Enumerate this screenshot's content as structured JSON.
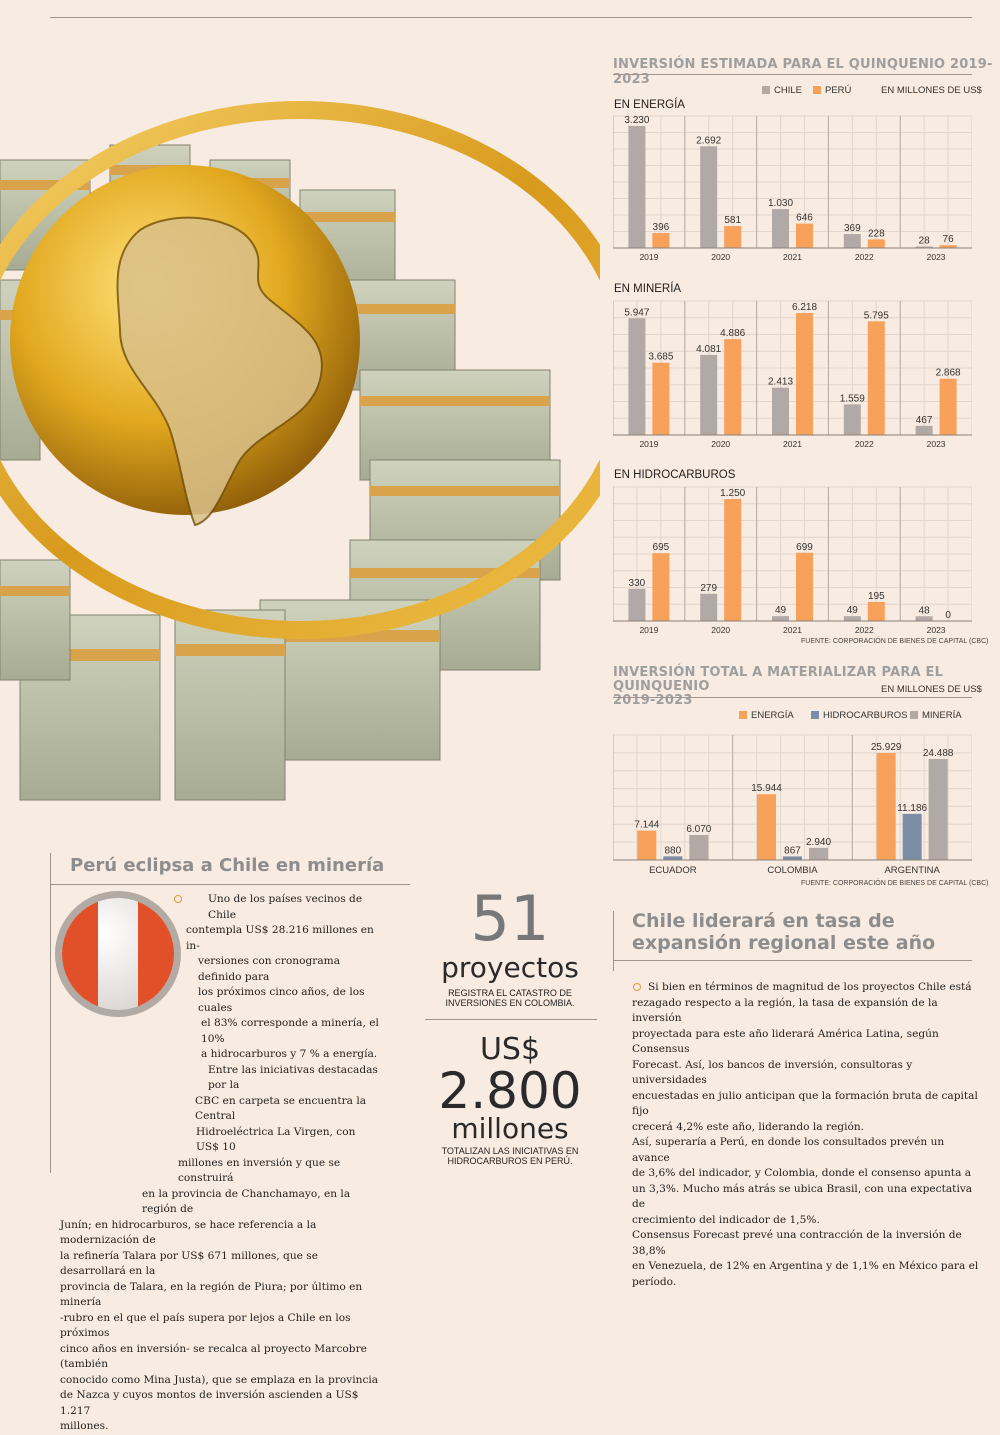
{
  "header": {
    "invest_title": "INVERSIÓN ESTIMADA PARA EL QUINQUENIO 2019-2023",
    "legend_chile": "CHILE",
    "legend_peru": "PERÚ",
    "units": "EN MILLONES DE US$",
    "source1": "FUENTE: CORPORACIÓN DE BIENES DE CAPITAL (CBC)",
    "total_title_line1": "INVERSIÓN TOTAL A MATERIALIZAR PARA EL QUINQUENIO",
    "total_title_line2": "2019-2023",
    "total_units": "EN MILLONES DE US$",
    "legend_energia": "ENERGÍA",
    "legend_hidro": "HIDROCARBUROS",
    "legend_mineria": "MINERÍA",
    "source2": "FUENTE: CORPORACIÓN DE BIENES DE CAPITAL (CBC)"
  },
  "colors": {
    "chile": "#b1a9a5",
    "peru": "#f7a15b",
    "hidro": "#7b8ea5",
    "mineria": "#b1a9a5",
    "energia": "#f7a15b"
  },
  "chart_data": [
    {
      "type": "bar",
      "title": "EN ENERGÍA",
      "categories": [
        "2019",
        "2020",
        "2021",
        "2022",
        "2023"
      ],
      "series": [
        {
          "name": "CHILE",
          "values": [
            3230,
            2692,
            1030,
            369,
            28
          ],
          "labels": [
            "3.230",
            "2.692",
            "1.030",
            "369",
            "28"
          ]
        },
        {
          "name": "PERÚ",
          "values": [
            396,
            581,
            646,
            228,
            76
          ],
          "labels": [
            "396",
            "581",
            "646",
            "228",
            "76"
          ]
        }
      ],
      "ylim": [
        0,
        3230
      ]
    },
    {
      "type": "bar",
      "title": "EN MINERÍA",
      "categories": [
        "2019",
        "2020",
        "2021",
        "2022",
        "2023"
      ],
      "series": [
        {
          "name": "CHILE",
          "values": [
            5947,
            4081,
            2413,
            1559,
            467
          ],
          "labels": [
            "5.947",
            "4.081",
            "2.413",
            "1.559",
            "467"
          ]
        },
        {
          "name": "PERÚ",
          "values": [
            3685,
            4886,
            6218,
            5795,
            2868
          ],
          "labels": [
            "3.685",
            "4.886",
            "6.218",
            "5.795",
            "2.868"
          ]
        }
      ],
      "ylim": [
        0,
        6218
      ]
    },
    {
      "type": "bar",
      "title": "EN HIDROCARBUROS",
      "categories": [
        "2019",
        "2020",
        "2021",
        "2022",
        "2023"
      ],
      "series": [
        {
          "name": "CHILE",
          "values": [
            330,
            279,
            49,
            49,
            48
          ],
          "labels": [
            "330",
            "279",
            "49",
            "49",
            "48"
          ]
        },
        {
          "name": "PERÚ",
          "values": [
            695,
            1250,
            699,
            195,
            0
          ],
          "labels": [
            "695",
            "1.250",
            "699",
            "195",
            "0"
          ]
        }
      ],
      "ylim": [
        0,
        1250
      ]
    },
    {
      "type": "bar",
      "title": "INVERSIÓN TOTAL A MATERIALIZAR PARA EL QUINQUENIO 2019-2023",
      "categories": [
        "ECUADOR",
        "COLOMBIA",
        "ARGENTINA"
      ],
      "series": [
        {
          "name": "ENERGÍA",
          "values": [
            7144,
            15944,
            25929
          ],
          "labels": [
            "7.144",
            "15.944",
            "25.929"
          ]
        },
        {
          "name": "HIDROCARBUROS",
          "values": [
            880,
            867,
            11186
          ],
          "labels": [
            "880",
            "867",
            "11.186"
          ]
        },
        {
          "name": "MINERÍA",
          "values": [
            6070,
            2940,
            24488
          ],
          "labels": [
            "6.070",
            "2.940",
            "24.488"
          ]
        }
      ],
      "ylim": [
        0,
        25929
      ]
    }
  ],
  "story_left": {
    "title": "Perú eclipsa a Chile en minería",
    "lines": [
      "Uno de los países vecinos de Chile",
      "contempla US$ 28.216 millones en in-",
      "versiones con cronograma definido para",
      "los próximos cinco años, de los cuales",
      "el 83% corresponde a minería, el 10%",
      "a hidrocarburos y 7 % a energía.",
      "Entre las iniciativas destacadas por la",
      "CBC en carpeta se encuentra la Central",
      "Hidroeléctrica La Virgen, con US$ 10",
      "millones en inversión y que se construirá",
      "en la provincia de Chanchamayo, en la región de",
      "Junín; en hidrocarburos, se hace referencia a la modernización de",
      "la refinería Talara por US$ 671 millones, que se desarrollará en la",
      "provincia de Talara, en la región de Piura; por último en minería",
      "-rubro en el que el país supera por lejos a Chile en los próximos",
      "cinco años en inversión- se recalca al proyecto Marcobre (también",
      "conocido como Mina Justa), que se emplaza en la provincia",
      "de Nazca y cuyos montos de inversión ascienden a US$ 1.217",
      "millones."
    ]
  },
  "stats": {
    "n1": "51",
    "n1_unit": "proyectos",
    "n1_caption_1": "REGISTRA EL CATASTRO DE",
    "n1_caption_2": "INVERSIONES EN COLOMBIA.",
    "n2_prefix": "US$",
    "n2": "2.800",
    "n2_unit": "millones",
    "n2_caption_1": "TOTALIZAN LAS INICIATIVAS EN",
    "n2_caption_2": "HIDROCARBUROS EN PERÚ."
  },
  "story_right": {
    "title_1": "Chile liderará en tasa de",
    "title_2": "expansión regional este año",
    "lines": [
      "Si bien en términos de magnitud de los proyectos Chile está",
      "rezagado respecto a la región, la tasa de expansión de la inversión",
      "proyectada para este año liderará América Latina, según Consensus",
      "Forecast. Así, los bancos de inversión, consultoras y universidades",
      "encuestadas en julio anticipan que la formación bruta de capital fijo",
      "crecerá 4,2% este año, liderando la región.",
      "Así, superaría a Perú, en donde los consultados prevén un avance",
      "de 3,6% del indicador, y Colombia, donde el consenso apunta a",
      "un 3,3%. Mucho más atrás se ubica Brasil, con una expectativa de",
      "crecimiento del indicador de 1,5%.",
      "Consensus Forecast prevé una contracción de la inversión de 38,8%",
      "en Venezuela, de 12% en Argentina y de 1,1% en México para el",
      "período."
    ]
  }
}
